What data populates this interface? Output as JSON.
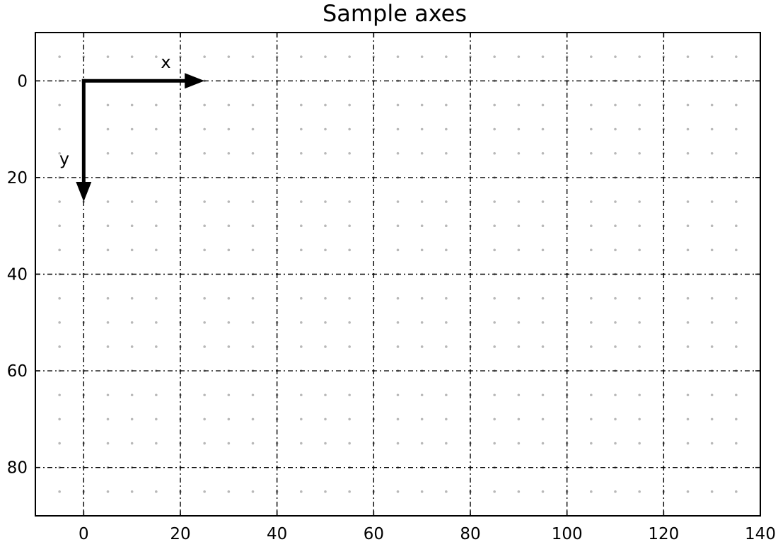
{
  "chart_data": {
    "type": "scatter",
    "title": "Sample axes",
    "xlabel": "",
    "ylabel": "",
    "xlim": [
      -10,
      140
    ],
    "ylim": [
      90,
      -10
    ],
    "y_inverted": true,
    "x_ticks": [
      0,
      20,
      40,
      60,
      80,
      100,
      120,
      140
    ],
    "y_ticks": [
      0,
      20,
      40,
      60,
      80
    ],
    "grid": true,
    "minor_grid_step": 5,
    "annotations": [
      {
        "label": "x",
        "from": [
          0,
          0
        ],
        "to": [
          25,
          0
        ],
        "label_at": [
          17,
          -4
        ],
        "style": "arrow"
      },
      {
        "label": "y",
        "from": [
          0,
          0
        ],
        "to": [
          0,
          25
        ],
        "label_at": [
          -4,
          16
        ],
        "style": "arrow"
      }
    ]
  }
}
